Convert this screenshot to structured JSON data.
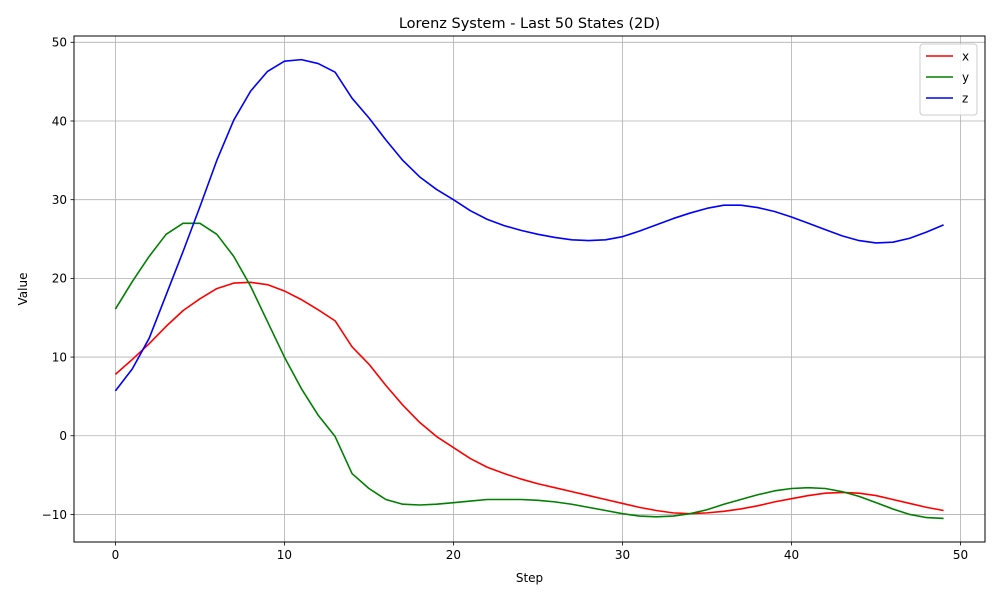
{
  "chart_data": {
    "type": "line",
    "title": "Lorenz System - Last 50 States (2D)",
    "xlabel": "Step",
    "ylabel": "Value",
    "xlim": [
      -2.45,
      51.45
    ],
    "ylim": [
      -13.5,
      50.8
    ],
    "xticks": [
      0,
      10,
      20,
      30,
      40,
      50
    ],
    "yticks": [
      -10,
      0,
      10,
      20,
      30,
      40,
      50
    ],
    "grid": true,
    "legend_position": "top-right",
    "x": [
      0,
      1,
      2,
      3,
      4,
      5,
      6,
      7,
      8,
      9,
      10,
      11,
      12,
      13,
      14,
      15,
      16,
      17,
      18,
      19,
      20,
      21,
      22,
      23,
      24,
      25,
      26,
      27,
      28,
      29,
      30,
      31,
      32,
      33,
      34,
      35,
      36,
      37,
      38,
      39,
      40,
      41,
      42,
      43,
      44,
      45,
      46,
      47,
      48,
      49
    ],
    "series": [
      {
        "name": "x",
        "color": "#ff0000",
        "values": [
          7.8,
          9.7,
          11.7,
          13.9,
          15.9,
          17.4,
          18.7,
          19.4,
          19.5,
          19.2,
          18.4,
          17.3,
          16.0,
          14.6,
          11.3,
          9.1,
          6.4,
          3.9,
          1.7,
          -0.1,
          -1.5,
          -2.9,
          -4.0,
          -4.8,
          -5.5,
          -6.1,
          -6.6,
          -7.1,
          -7.6,
          -8.1,
          -8.6,
          -9.1,
          -9.5,
          -9.8,
          -9.9,
          -9.8,
          -9.6,
          -9.3,
          -8.9,
          -8.4,
          -8.0,
          -7.6,
          -7.3,
          -7.2,
          -7.3,
          -7.6,
          -8.1,
          -8.6,
          -9.1,
          -9.5
        ]
      },
      {
        "name": "y",
        "color": "#008000",
        "values": [
          16.1,
          19.6,
          22.8,
          25.6,
          27.0,
          27.0,
          25.6,
          22.8,
          19.0,
          14.5,
          10.0,
          6.0,
          2.6,
          -0.1,
          -4.8,
          -6.7,
          -8.1,
          -8.7,
          -8.8,
          -8.7,
          -8.5,
          -8.3,
          -8.1,
          -8.1,
          -8.1,
          -8.2,
          -8.4,
          -8.7,
          -9.1,
          -9.5,
          -9.9,
          -10.2,
          -10.3,
          -10.2,
          -9.9,
          -9.4,
          -8.7,
          -8.1,
          -7.5,
          -7.0,
          -6.7,
          -6.6,
          -6.7,
          -7.1,
          -7.7,
          -8.5,
          -9.3,
          -10.0,
          -10.4,
          -10.5
        ]
      },
      {
        "name": "z",
        "color": "#0000ff",
        "values": [
          5.7,
          8.5,
          12.4,
          17.9,
          23.4,
          29.1,
          35.0,
          40.1,
          43.8,
          46.3,
          47.6,
          47.8,
          47.3,
          46.2,
          42.9,
          40.4,
          37.6,
          35.0,
          32.9,
          31.3,
          30.0,
          28.6,
          27.5,
          26.7,
          26.1,
          25.6,
          25.2,
          24.9,
          24.8,
          24.9,
          25.3,
          26.0,
          26.8,
          27.6,
          28.3,
          28.9,
          29.3,
          29.3,
          29.0,
          28.5,
          27.8,
          27.0,
          26.2,
          25.4,
          24.8,
          24.5,
          24.6,
          25.1,
          25.9,
          26.8
        ]
      }
    ]
  }
}
